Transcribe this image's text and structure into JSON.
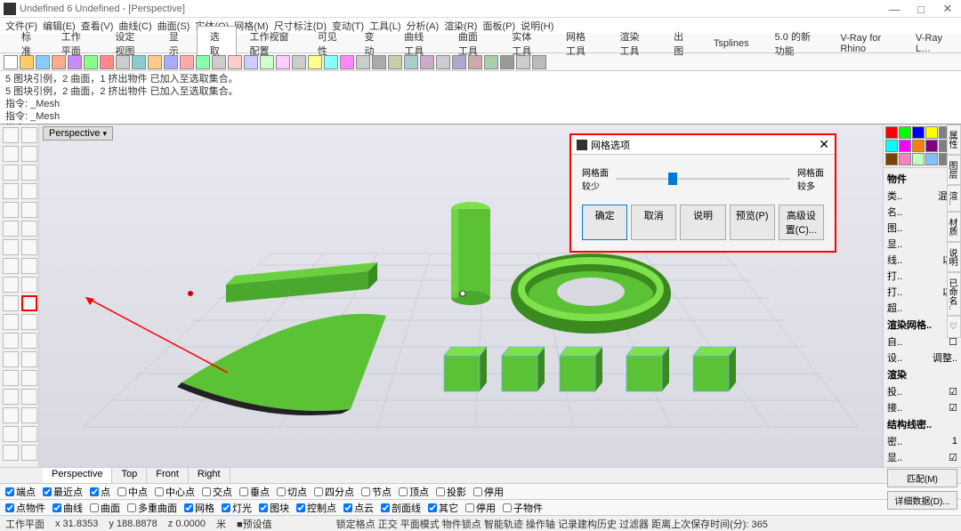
{
  "window": {
    "title": "Undefined 6 Undefined - [Perspective]",
    "min": "—",
    "max": "□",
    "close": "✕"
  },
  "menus": [
    "文件(F)",
    "编辑(E)",
    "查看(V)",
    "曲线(C)",
    "曲面(S)",
    "实体(O)",
    "网格(M)",
    "尺寸标注(D)",
    "变动(T)",
    "工具(L)",
    "分析(A)",
    "渲染(R)",
    "面板(P)",
    "说明(H)"
  ],
  "tabs": [
    "标准",
    "工作平面",
    "设定视图",
    "显示",
    "选取",
    "工作视窗配置",
    "可见性",
    "变动",
    "曲线工具",
    "曲面工具",
    "实体工具",
    "网格工具",
    "渲染工具",
    "出图",
    "Tsplines",
    "5.0 的新功能",
    "V-Ray for Rhino",
    "V-Ray L…"
  ],
  "active_tab": 4,
  "cmd": {
    "l1": "5 图块引例，2 曲面，1 挤出物件 已加入至选取集合。",
    "l2": "5 图块引例，2 曲面，2 挤出物件 已加入至选取集合。",
    "l3": "指令: _Mesh",
    "l4": "指令: _Mesh",
    "l5": "指令: "
  },
  "viewport_label": "Perspective",
  "dialog": {
    "title": "网格选项",
    "left_label": "网格面\n较少",
    "right_label": "网格面\n较多",
    "buttons": [
      "确定",
      "取消",
      "说明",
      "预览(P)",
      "高级设置(C)..."
    ]
  },
  "swatches": [
    [
      "#ff0000",
      "#00ff00",
      "#0000ff",
      "#ffff00",
      "#808080"
    ],
    [
      "#00ffff",
      "#ff00ff",
      "#ff8000",
      "#800080",
      "#808080"
    ],
    [
      "#804000",
      "#ff80c0",
      "#c0ffc0",
      "#80c0ff",
      "#808080"
    ]
  ],
  "props": {
    "header1": "物件",
    "rows1": [
      [
        "类..",
        "混合"
      ],
      [
        "名..",
        ""
      ],
      [
        "图..",
        "■"
      ],
      [
        "显..",
        "☑"
      ],
      [
        "线..",
        "以.."
      ],
      [
        "打..",
        "◇"
      ],
      [
        "打..",
        "以.."
      ],
      [
        "超..",
        ""
      ]
    ],
    "header2": "渲染网格..",
    "rows2": [
      [
        "自..",
        "☐"
      ],
      [
        "设..",
        "调整.."
      ]
    ],
    "header3": "渲染",
    "rows3": [
      [
        "投..",
        "☑"
      ],
      [
        "接..",
        "☑"
      ]
    ],
    "header4": "结构线密..",
    "rows4": [
      [
        "密..",
        "1"
      ],
      [
        "显..",
        "☑"
      ]
    ],
    "btn1": "匹配(M)",
    "btn2": "详细数据(D)..."
  },
  "rtabs": [
    "属性",
    "图层",
    "渲..",
    "材质",
    "说明",
    "已命名..",
    "♡"
  ],
  "view_tabs": [
    "Perspective",
    "Top",
    "Front",
    "Right"
  ],
  "osnaps": [
    [
      "端点",
      true
    ],
    [
      "最近点",
      true
    ],
    [
      "点",
      true
    ],
    [
      "中点",
      false
    ],
    [
      "中心点",
      false
    ],
    [
      "交点",
      false
    ],
    [
      "垂点",
      false
    ],
    [
      "切点",
      false
    ],
    [
      "四分点",
      false
    ],
    [
      "节点",
      false
    ],
    [
      "顶点",
      false
    ],
    [
      "投影",
      false
    ],
    [
      "停用",
      false
    ]
  ],
  "osnaps2": [
    [
      "点物件",
      true
    ],
    [
      "曲线",
      true
    ],
    [
      "曲面",
      false
    ],
    [
      "多重曲面",
      false
    ],
    [
      "网格",
      true
    ],
    [
      "灯光",
      true
    ],
    [
      "图块",
      true
    ],
    [
      "控制点",
      true
    ],
    [
      "点云",
      true
    ],
    [
      "剖面线",
      true
    ],
    [
      "其它",
      true
    ],
    [
      "停用",
      false
    ],
    [
      "子物件",
      false
    ]
  ],
  "status": {
    "label": "工作平面",
    "x": "x 31.8353",
    "y": "y 188.8878",
    "z": "z 0.0000",
    "unit": "米",
    "preset": "■预设值",
    "modes": "锁定格点  正交  平面模式  物件锁点  智能轨迹  操作轴  记录建构历史  过滤器  距离上次保存时间(分): 365"
  },
  "shapes": {
    "green": "#5bc236",
    "green_dark": "#3a8a1f",
    "wire": "#6bb5e8"
  }
}
